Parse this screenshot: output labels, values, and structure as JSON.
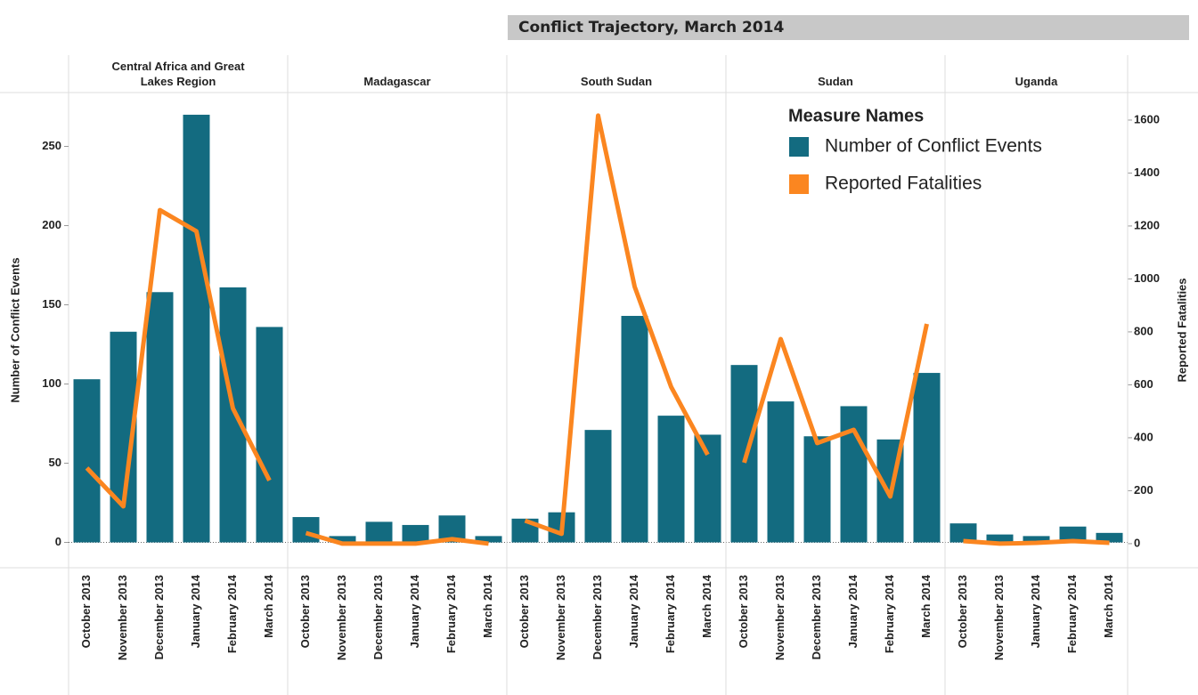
{
  "chart_data": {
    "type": "bar",
    "title": "Conflict Trajectory, March 2014",
    "y_label": "Number of Conflict Events",
    "y2_label": "Reported Fatalities",
    "legend_title": "Measure Names",
    "series": [
      {
        "name": "Number of Conflict Events",
        "color": "#136b80",
        "type": "bar"
      },
      {
        "name": "Reported Fatalities",
        "color": "#fb8620",
        "type": "line",
        "axis": "y2"
      }
    ],
    "panels": [
      {
        "name": "Central Africa and Great Lakes Region",
        "categories": [
          "October 2013",
          "November 2013",
          "December 2013",
          "January 2014",
          "February 2014",
          "March 2014"
        ],
        "series": [
          {
            "values": [
              103,
              133,
              158,
              270,
              161,
              136
            ]
          },
          {
            "values": [
              286,
              141,
              1260,
              1180,
              511,
              239
            ]
          }
        ]
      },
      {
        "name": "Madagascar",
        "categories": [
          "October 2013",
          "November 2013",
          "December 2013",
          "January 2014",
          "February 2014",
          "March 2014"
        ],
        "series": [
          {
            "values": [
              16,
              4,
              13,
              11,
              17,
              4
            ]
          },
          {
            "values": [
              40,
              0,
              0,
              0,
              17,
              0
            ]
          }
        ]
      },
      {
        "name": "South Sudan",
        "categories": [
          "October 2013",
          "November 2013",
          "December 2013",
          "January 2014",
          "February 2014",
          "March 2014"
        ],
        "series": [
          {
            "values": [
              15,
              19,
              71,
              143,
              80,
              68
            ]
          },
          {
            "values": [
              87,
              37,
              1617,
              971,
              592,
              336
            ]
          }
        ]
      },
      {
        "name": "Sudan",
        "categories": [
          "October 2013",
          "November 2013",
          "December 2013",
          "January 2014",
          "February 2014",
          "March 2014"
        ],
        "series": [
          {
            "values": [
              112,
              89,
              67,
              86,
              65,
              107
            ]
          },
          {
            "values": [
              306,
              773,
              380,
              430,
              178,
              830
            ]
          }
        ]
      },
      {
        "name": "Uganda",
        "categories": [
          "October 2013",
          "November 2013",
          "January 2014",
          "February 2014",
          "March 2014"
        ],
        "series": [
          {
            "values": [
              12,
              5,
              4,
              10,
              6
            ]
          },
          {
            "values": [
              10,
              0,
              3,
              10,
              3
            ]
          }
        ]
      }
    ],
    "ylim": [
      -16,
      284
    ],
    "yticks": [
      0,
      50,
      100,
      150,
      200,
      250
    ],
    "y2lim": [
      -91,
      1704
    ],
    "y2ticks": [
      0,
      200,
      400,
      600,
      800,
      1000,
      1200,
      1400,
      1600
    ]
  }
}
